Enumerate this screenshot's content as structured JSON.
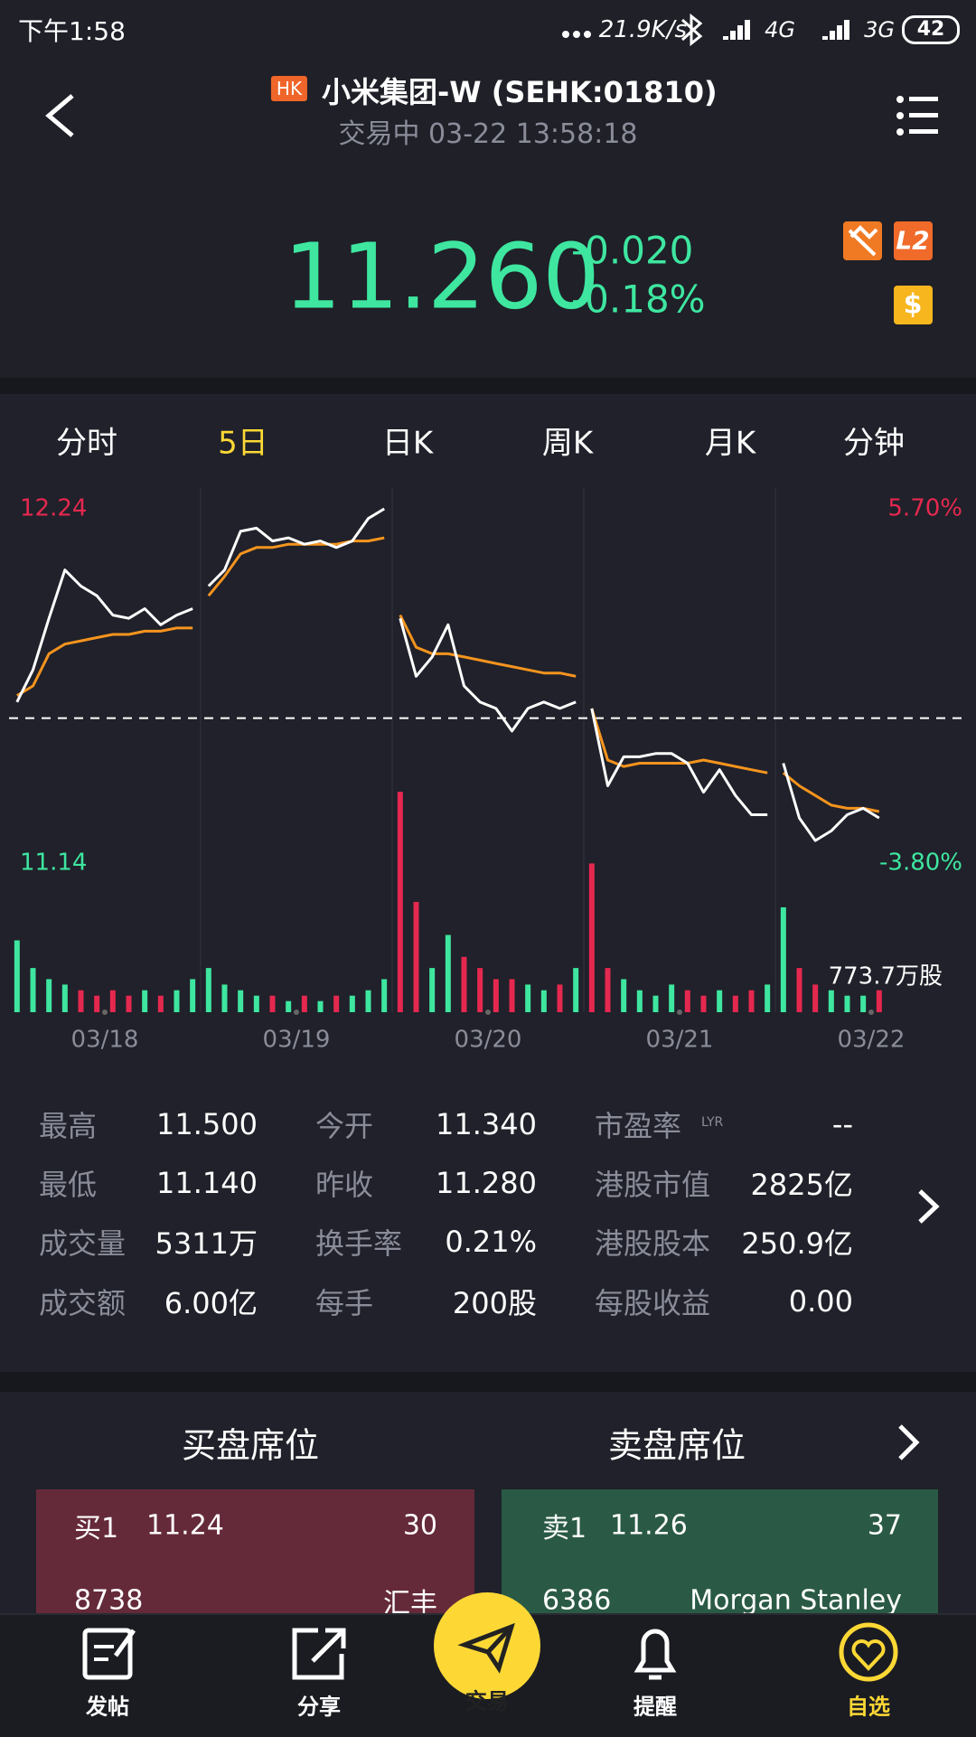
{
  "status_bar": {
    "time": "下午1:58",
    "speed": "21.9K/s",
    "network_1": "4G",
    "network_2": "3G",
    "battery": "42"
  },
  "header": {
    "market_badge": "HK",
    "title": "小米集团-W (SEHK:01810)",
    "status": "交易中 03-22 13:58:18"
  },
  "quote": {
    "price": "11.260",
    "change": "-0.020",
    "change_percent": "-0.18%",
    "level_badge": "L2",
    "paid_badge": "$"
  },
  "tabs": {
    "items": [
      "分时",
      "5日",
      "日K",
      "周K",
      "月K",
      "分钟"
    ],
    "active": 1
  },
  "chart_data": {
    "type": "line",
    "categories": [
      "03/18",
      "03/19",
      "03/20",
      "03/21",
      "03/22"
    ],
    "ylim": [
      11.14,
      12.24
    ],
    "yticks": [
      12.24,
      11.14
    ],
    "y2lim": [
      -3.8,
      5.7
    ],
    "y2ticks": [
      {
        "value": 5.7,
        "label": "5.70%"
      },
      {
        "value": -3.8,
        "label": "-3.80%"
      }
    ],
    "reference_line": 11.59,
    "price": [
      [
        11.64,
        11.74,
        11.9,
        12.05,
        12.0,
        11.97,
        11.91,
        11.9,
        11.93,
        11.88,
        11.91,
        11.93
      ],
      [
        12.0,
        12.05,
        12.17,
        12.18,
        12.14,
        12.15,
        12.13,
        12.14,
        12.12,
        12.14,
        12.21,
        12.24
      ],
      [
        11.9,
        11.72,
        11.78,
        11.88,
        11.69,
        11.64,
        11.62,
        11.55,
        11.62,
        11.64,
        11.62,
        11.64
      ],
      [
        11.62,
        11.38,
        11.47,
        11.47,
        11.48,
        11.48,
        11.45,
        11.36,
        11.43,
        11.35,
        11.29,
        11.29
      ],
      [
        11.45,
        11.28,
        11.21,
        11.24,
        11.29,
        11.31,
        11.28,
        null,
        null,
        null,
        null,
        null
      ]
    ],
    "average": [
      [
        11.66,
        11.69,
        11.79,
        11.82,
        11.83,
        11.84,
        11.85,
        11.85,
        11.86,
        11.86,
        11.87,
        11.87
      ],
      [
        11.97,
        12.03,
        12.1,
        12.12,
        12.12,
        12.13,
        12.13,
        12.13,
        12.13,
        12.14,
        12.14,
        12.15
      ],
      [
        11.91,
        11.81,
        11.79,
        11.79,
        11.78,
        11.77,
        11.76,
        11.75,
        11.74,
        11.73,
        11.73,
        11.72
      ],
      [
        11.62,
        11.46,
        11.44,
        11.45,
        11.45,
        11.45,
        11.45,
        11.46,
        11.45,
        11.44,
        11.43,
        11.42
      ],
      [
        11.42,
        11.38,
        11.35,
        11.32,
        11.31,
        11.31,
        11.3,
        null,
        null,
        null,
        null,
        null
      ]
    ],
    "volume": [
      [
        252,
        155,
        116,
        97,
        77,
        58,
        77,
        58,
        77,
        58,
        77,
        116
      ],
      [
        155,
        97,
        77,
        58,
        58,
        39,
        58,
        39,
        58,
        58,
        77,
        116
      ],
      [
        773.7,
        387,
        155,
        271,
        194,
        155,
        116,
        116,
        97,
        77,
        97,
        155
      ],
      [
        522,
        155,
        116,
        77,
        58,
        97,
        77,
        58,
        77,
        58,
        77,
        97
      ],
      [
        368,
        155,
        97,
        77,
        58,
        58,
        77,
        null,
        null,
        null,
        null,
        null
      ]
    ],
    "volume_lim": [
      0,
      773.7
    ],
    "volume_label": "773.7万股",
    "colors": {
      "price": "#ffffff",
      "average": "#f5941e",
      "up": "#3ee6a0",
      "down": "#e5284f",
      "reference": "#ffffff"
    }
  },
  "stats": {
    "rows": [
      [
        "最高",
        "11.500",
        "今开",
        "11.340",
        "市盈率",
        "--"
      ],
      [
        "最低",
        "11.140",
        "昨收",
        "11.280",
        "港股市值",
        "2825亿"
      ],
      [
        "成交量",
        "5311万",
        "换手率",
        "0.21%",
        "港股股本",
        "250.9亿"
      ],
      [
        "成交额",
        "6.00亿",
        "每手",
        "200股",
        "每股收益",
        "0.00"
      ]
    ],
    "superscript": "LYR"
  },
  "order_book": {
    "buy_title": "买盘席位",
    "sell_title": "卖盘席位",
    "buy": [
      [
        "买1",
        "11.24",
        "30"
      ],
      [
        "8738",
        "汇丰"
      ]
    ],
    "sell": [
      [
        "卖1",
        "11.26",
        "37"
      ],
      [
        "6386",
        "Morgan Stanley"
      ]
    ]
  },
  "nav": {
    "items": [
      "发帖",
      "分享",
      "交易",
      "提醒",
      "自选"
    ],
    "active": 4
  }
}
